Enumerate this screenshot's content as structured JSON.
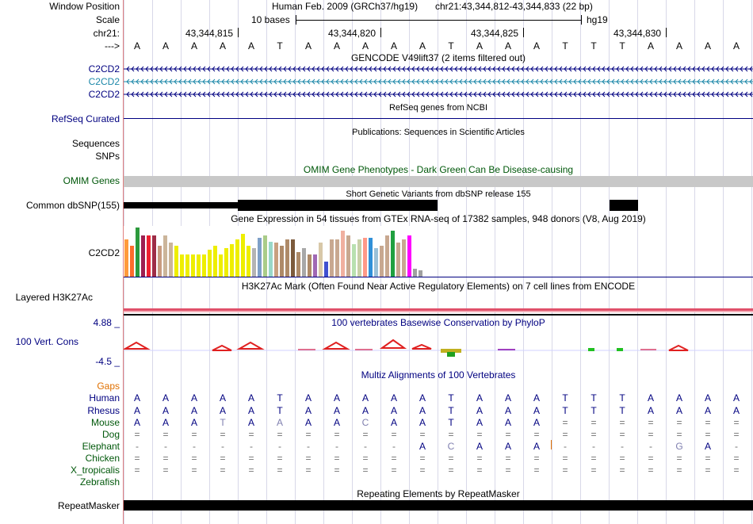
{
  "left_labels": {
    "window_position": "Window Position",
    "scale": "Scale",
    "chr": "chr21:",
    "arrow": "--->",
    "gencode_tx1": "C2CD2",
    "gencode_tx2": "C2CD2",
    "gencode_tx3": "C2CD2",
    "refseq": "RefSeq Curated",
    "sequences": "Sequences",
    "snps": "SNPs",
    "omim": "OMIM Genes",
    "dbsnp": "Common dbSNP(155)",
    "gtex": "C2CD2",
    "h3k27ac": "Layered H3K27Ac",
    "phylop_max": "4.88 _",
    "phylop_name": "100 Vert. Cons",
    "phylop_min": "-4.5 _",
    "gaps": "Gaps",
    "species": [
      "Human",
      "Rhesus",
      "Mouse",
      "Dog",
      "Elephant",
      "Chicken",
      "X_tropicalis",
      "Zebrafish"
    ],
    "repeatmasker": "RepeatMasker"
  },
  "header": {
    "assembly": "Human Feb. 2009 (GRCh37/hg19)",
    "position": "chr21:43,344,812-43,344,833 (22 bp)",
    "scale_label": "10 bases",
    "scale_db": "hg19",
    "coords": [
      "43,344,815",
      "43,344,820",
      "43,344,825",
      "43,344,830"
    ]
  },
  "sequence": [
    "A",
    "A",
    "A",
    "A",
    "A",
    "T",
    "A",
    "A",
    "A",
    "A",
    "A",
    "T",
    "A",
    "A",
    "A",
    "T",
    "T",
    "T",
    "A",
    "A",
    "A",
    "A"
  ],
  "track_titles": {
    "gencode": "GENCODE V49lift37 (2 items filtered out)",
    "refseq": "RefSeq genes from NCBI",
    "publications": "Publications: Sequences in Scientific Articles",
    "omim": "OMIM Gene Phenotypes - Dark Green Can Be Disease-causing",
    "dbsnp": "Short Genetic Variants from dbSNP release 155",
    "gtex": "Gene Expression in 54 tissues from GTEx RNA-seq of 17382 samples, 948 donors (V8, Aug 2019)",
    "h3k27ac": "H3K27Ac Mark (Often Found Near Active Regulatory Elements) on 7 cell lines from ENCODE",
    "phylop": "100 vertebrates Basewise Conservation by PhyloP",
    "multiz": "Multiz Alignments of 100 Vertebrates",
    "repeatmasker": "Repeating Elements by RepeatMasker"
  },
  "alignment": {
    "Rhesus": [
      "A",
      "A",
      "A",
      "A",
      "A",
      "T",
      "A",
      "A",
      "A",
      "A",
      "A",
      "T",
      "A",
      "A",
      "A",
      "T",
      "T",
      "T",
      "A",
      "A",
      "A",
      "A"
    ],
    "Mouse": [
      "A",
      "A",
      "A",
      "T",
      "A",
      "A",
      "A",
      "A",
      "C",
      "A",
      "A",
      "T",
      "A",
      "A",
      "A",
      "=",
      "=",
      "=",
      "=",
      "=",
      "=",
      "="
    ],
    "Dog": [
      "=",
      "=",
      "=",
      "=",
      "=",
      "=",
      "=",
      "=",
      "=",
      "=",
      "=",
      "=",
      "=",
      "=",
      "=",
      "=",
      "=",
      "=",
      "=",
      "=",
      "=",
      "="
    ],
    "Elephant": [
      "-",
      "-",
      "-",
      "-",
      "-",
      "-",
      "-",
      "-",
      "-",
      "-",
      "A",
      "C",
      "A",
      "A",
      "A",
      "-",
      "-",
      "-",
      "-",
      "G",
      "A",
      "-"
    ],
    "Chicken": [
      "=",
      "=",
      "=",
      "=",
      "=",
      "=",
      "=",
      "=",
      "=",
      "=",
      "=",
      "=",
      "=",
      "=",
      "=",
      "=",
      "=",
      "=",
      "=",
      "=",
      "=",
      "="
    ],
    "X_tropicalis": [
      "=",
      "=",
      "=",
      "=",
      "=",
      "=",
      "=",
      "=",
      "=",
      "=",
      "=",
      "=",
      "=",
      "=",
      "=",
      "=",
      "=",
      "=",
      "=",
      "=",
      "=",
      "="
    ]
  },
  "gtex_values": [
    36,
    30,
    48,
    40,
    40,
    40,
    30,
    40,
    33,
    30,
    22,
    22,
    22,
    22,
    22,
    26,
    30,
    22,
    28,
    32,
    36,
    42,
    30,
    28,
    38,
    40,
    34,
    33,
    30,
    36,
    36,
    24,
    28,
    22,
    22,
    33,
    15,
    36,
    36,
    45,
    40,
    32,
    36,
    38,
    38,
    28,
    30,
    40,
    45,
    33,
    36,
    40,
    8,
    6
  ],
  "gtex_colors": [
    "#ff9a3c",
    "#ff6c2c",
    "#2c9a3c",
    "#9e1f50",
    "#ee2030",
    "#9e2c46",
    "#c89c80",
    "#cbb59a",
    "#cbb59a",
    "#eeee00",
    "#eeee00",
    "#eeee00",
    "#eeee00",
    "#eeee00",
    "#eeee00",
    "#eeee00",
    "#eeee00",
    "#eeee00",
    "#eeee00",
    "#eeee00",
    "#eeee00",
    "#eeee00",
    "#eeee00",
    "#b4b4b4",
    "#7ea0c8",
    "#aacc88",
    "#99d8c8",
    "#c8a080",
    "#ae8a68",
    "#ae8a68",
    "#7c5a3c",
    "#ae8a68",
    "#a8a8a8",
    "#ae8a68",
    "#a068b4",
    "#d8c8a8",
    "#4050d0",
    "#c8a890",
    "#c8a890",
    "#f0b0a0",
    "#c8a890",
    "#b8e0b0",
    "#c8d0a8",
    "#ff9988",
    "#3090d8",
    "#9ac0d8",
    "#c8a890",
    "#c8a890",
    "#20a040",
    "#c8a890",
    "#c8a890",
    "#ff00ff",
    "#a0a0a0",
    "#a0a0a0"
  ],
  "colors": {
    "navy": "#000080",
    "teal": "#1d88a9",
    "dark_green": "#00580a",
    "omim_gray": "#c8c8c8",
    "gaps_orange": "#e07000",
    "h3k27ac_pink": "#e0506a",
    "divider": "#e08080"
  }
}
